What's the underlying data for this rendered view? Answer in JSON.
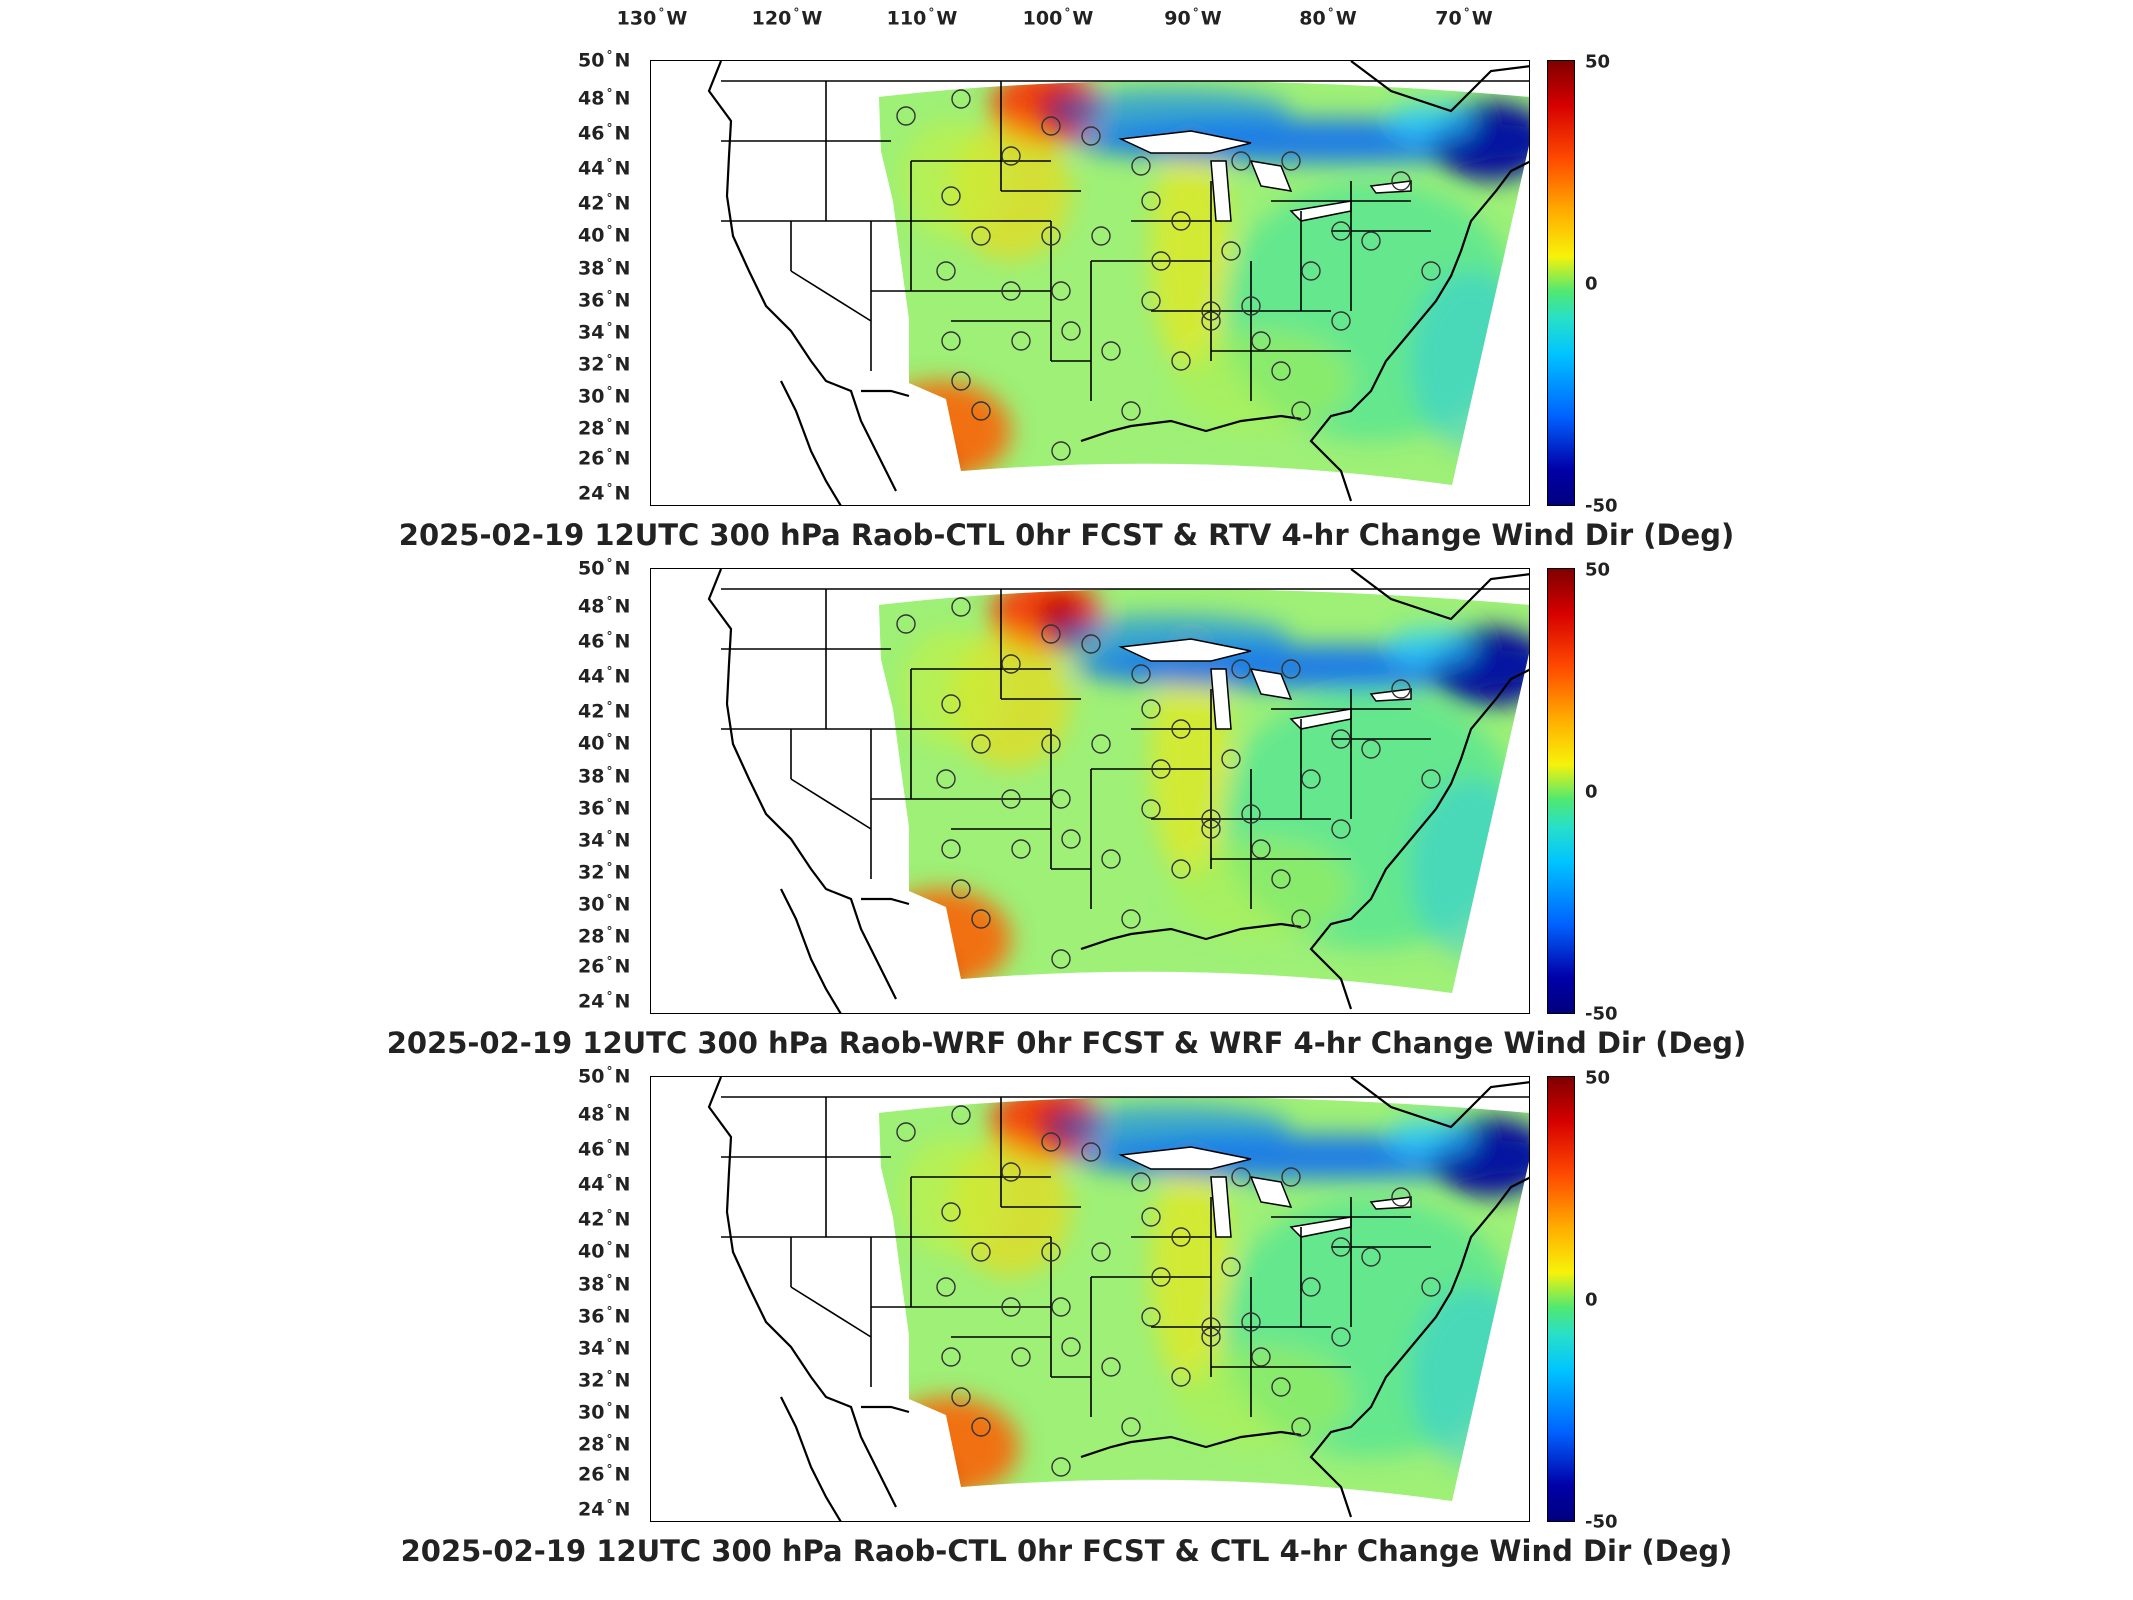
{
  "longitude_labels": [
    "130",
    "120",
    "110",
    "100",
    "90",
    "80",
    "70"
  ],
  "latitude_labels": [
    "50",
    "48",
    "46",
    "44",
    "42",
    "40",
    "38",
    "36",
    "34",
    "32",
    "30",
    "28",
    "26",
    "24"
  ],
  "lon_hemisphere": "W",
  "lat_hemisphere": "N",
  "colorbar": {
    "max_label": "50",
    "mid_label": "0",
    "min_label": "-50"
  },
  "panels": [
    {
      "title": "2025-02-19 12UTC 300 hPa Raob-CTL 0hr FCST & RTV 4-hr Change Wind Dir (Deg)"
    },
    {
      "title": "2025-02-19 12UTC 300 hPa Raob-WRF 0hr FCST & WRF 4-hr Change Wind Dir (Deg)"
    },
    {
      "title": "2025-02-19 12UTC 300 hPa Raob-CTL 0hr FCST & CTL 4-hr Change Wind Dir (Deg)"
    }
  ],
  "colors": {
    "colormap": [
      "#7f0000",
      "#ff4a00",
      "#f7f20a",
      "#4fe873",
      "#00c4ff",
      "#0000a8"
    ],
    "station_marker": "#333333"
  }
}
